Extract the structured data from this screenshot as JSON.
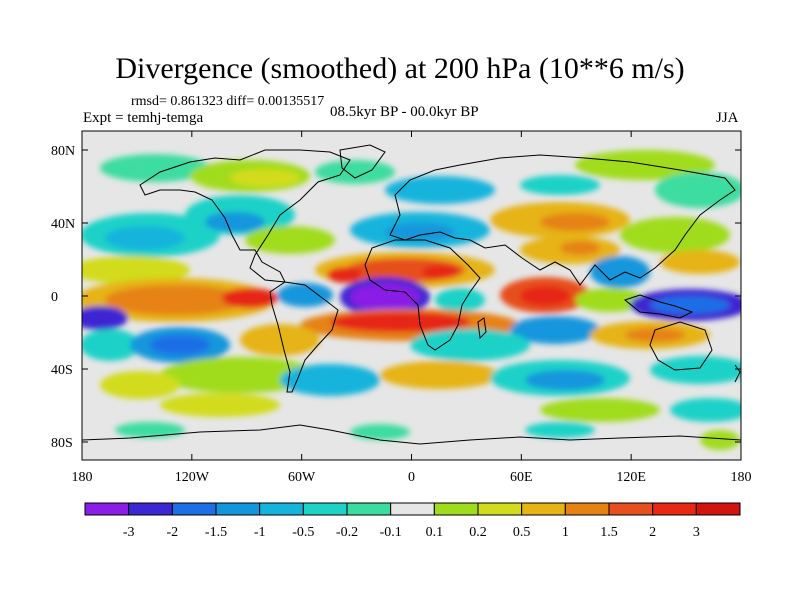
{
  "title": "Divergence (smoothed) at 200 hPa (10**6 m/s)",
  "stats": "rmsd= 0.861323 diff= 0.00135517",
  "experiment": "Expt = temhj-temga",
  "period": "08.5kyr BP - 00.0kyr BP",
  "season": "JJA",
  "lat_labels": [
    "80N",
    "40N",
    "0",
    "40S",
    "80S"
  ],
  "lon_labels": [
    "180",
    "120W",
    "60W",
    "0",
    "60E",
    "120E",
    "180"
  ],
  "colorbar": {
    "labels": [
      "-3",
      "-2",
      "-1.5",
      "-1",
      "-0.5",
      "-0.2",
      "-0.1",
      "0.1",
      "0.2",
      "0.5",
      "1",
      "1.5",
      "2",
      "3"
    ],
    "colors": [
      "#8a1ee6",
      "#3c28d2",
      "#1e6ee6",
      "#1496dc",
      "#14b4dc",
      "#1ed2c8",
      "#3cdca0",
      "#e6e6e6",
      "#a0dc1e",
      "#d2dc1e",
      "#e6b414",
      "#e68214",
      "#e6501e",
      "#e62814",
      "#d2140f"
    ]
  }
}
